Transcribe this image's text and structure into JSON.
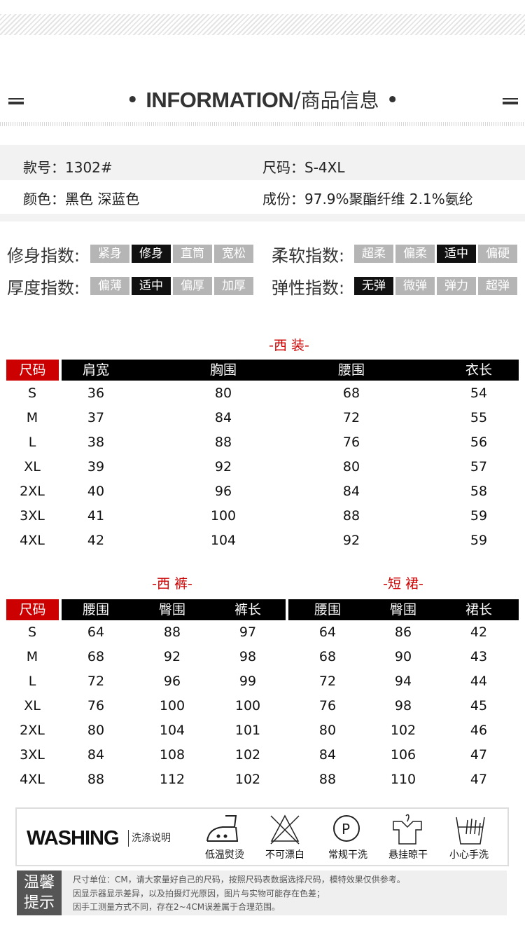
{
  "header": {
    "title_en": "INFORMATION",
    "title_sep": "/",
    "title_cn": "商品信息",
    "dot": "•"
  },
  "info": {
    "style_label": "款号：1302#",
    "size_label": "尺码：S-4XL",
    "color_label": "颜色：黑色  深蓝色",
    "material_label": "成份：97.9%聚酯纤维  2.1%氨纶"
  },
  "indices": [
    {
      "label": "修身指数:",
      "options": [
        "紧身",
        "修身",
        "直筒",
        "宽松"
      ],
      "selected": 1
    },
    {
      "label": "柔软指数:",
      "options": [
        "超柔",
        "偏柔",
        "适中",
        "偏硬"
      ],
      "selected": 2
    },
    {
      "label": "厚度指数:",
      "options": [
        "偏薄",
        "适中",
        "偏厚",
        "加厚"
      ],
      "selected": 1
    },
    {
      "label": "弹性指数:",
      "options": [
        "无弹",
        "微弹",
        "弹力",
        "超弹"
      ],
      "selected": 0
    }
  ],
  "suit": {
    "title": "-西 装-",
    "headers": [
      "尺码",
      "肩宽",
      "胸围",
      "腰围",
      "衣长"
    ],
    "rows": [
      [
        "S",
        "36",
        "80",
        "68",
        "54"
      ],
      [
        "M",
        "37",
        "84",
        "72",
        "55"
      ],
      [
        "L",
        "38",
        "88",
        "76",
        "56"
      ],
      [
        "XL",
        "39",
        "92",
        "80",
        "57"
      ],
      [
        "2XL",
        "40",
        "96",
        "84",
        "58"
      ],
      [
        "3XL",
        "41",
        "100",
        "88",
        "59"
      ],
      [
        "4XL",
        "42",
        "104",
        "92",
        "59"
      ]
    ]
  },
  "pants": {
    "title": "-西 裤-",
    "headers": [
      "尺码",
      "腰围",
      "臀围",
      "裤长"
    ],
    "rows": [
      [
        "S",
        "64",
        "88",
        "97"
      ],
      [
        "M",
        "68",
        "92",
        "98"
      ],
      [
        "L",
        "72",
        "96",
        "99"
      ],
      [
        "XL",
        "76",
        "100",
        "100"
      ],
      [
        "2XL",
        "80",
        "104",
        "101"
      ],
      [
        "3XL",
        "84",
        "108",
        "102"
      ],
      [
        "4XL",
        "88",
        "112",
        "102"
      ]
    ]
  },
  "skirt": {
    "title": "-短 裙-",
    "headers": [
      "腰围",
      "臀围",
      "裙长"
    ],
    "rows": [
      [
        "64",
        "86",
        "42"
      ],
      [
        "68",
        "90",
        "43"
      ],
      [
        "72",
        "94",
        "44"
      ],
      [
        "76",
        "98",
        "45"
      ],
      [
        "80",
        "102",
        "46"
      ],
      [
        "84",
        "106",
        "47"
      ],
      [
        "88",
        "110",
        "47"
      ]
    ]
  },
  "washing": {
    "title_en": "WASHING",
    "title_cn": "洗涤说明",
    "icons": [
      {
        "name": "iron-low-icon",
        "label": "低温熨烫"
      },
      {
        "name": "no-bleach-icon",
        "label": "不可漂白"
      },
      {
        "name": "dry-clean-icon",
        "label": "常规干洗"
      },
      {
        "name": "hang-dry-icon",
        "label": "悬挂晾干"
      },
      {
        "name": "hand-wash-icon",
        "label": "小心手洗"
      }
    ]
  },
  "notes": {
    "title": "温馨提示",
    "lines": [
      "尺寸单位：CM，请大家量好自己的尺码，按照尺码表数据选择尺码，模特效果仅供参考。",
      "因显示器显示差异，以及拍摄灯光原因，图片与实物可能存在色差；",
      "因手工测量方式不同，存在2~4CM误差属于合理范围。"
    ]
  },
  "colors": {
    "accent_red": "#cc0000",
    "header_black": "#000000",
    "chip_gray": "#b5b5b5"
  }
}
